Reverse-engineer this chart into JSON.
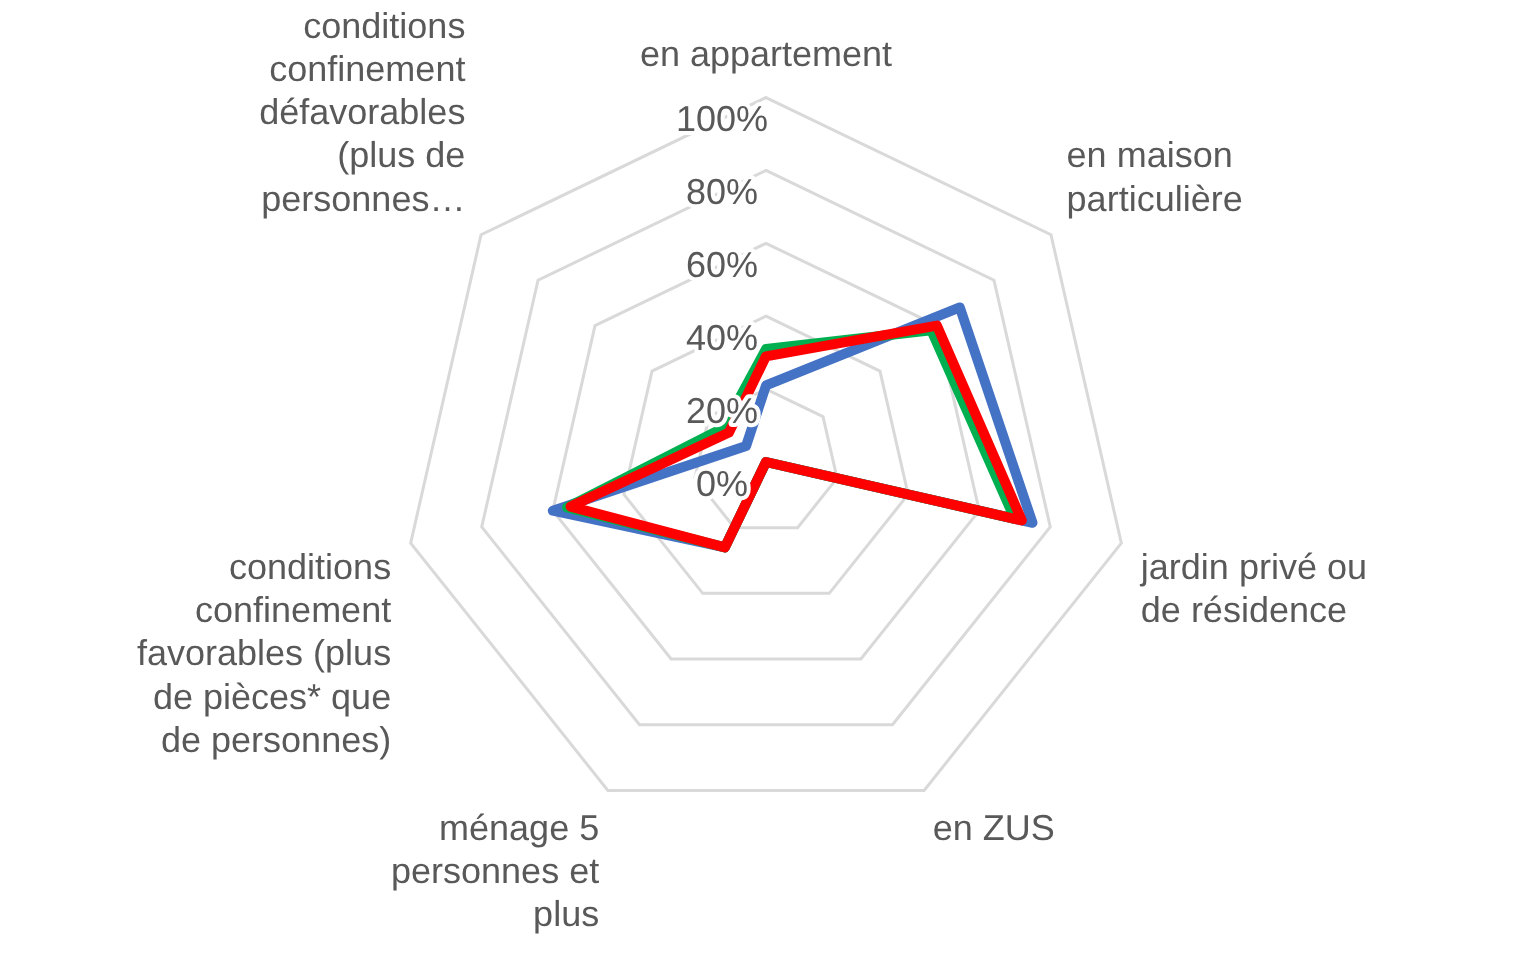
{
  "chart_data": {
    "type": "radar",
    "categories": [
      "en appartement",
      "en maison particulière",
      "jardin privé ou de résidence",
      "en ZUS",
      "ménage 5 personnes et plus",
      "conditions confinement favorables (plus de pièces* que de personnes)",
      "conditions confinement défavorables (plus de personnes…"
    ],
    "series": [
      {
        "color": "#4472c4",
        "values": [
          21,
          68,
          75,
          0,
          26,
          60,
          7
        ]
      },
      {
        "color": "#00b050",
        "values": [
          31,
          58,
          70,
          0,
          26,
          56,
          15
        ]
      },
      {
        "color": "#ff0000",
        "values": [
          29,
          60,
          72,
          0,
          26,
          55,
          13
        ]
      }
    ],
    "ylim": [
      0,
      100
    ],
    "yticks": [
      {
        "value": 0,
        "label": "0%"
      },
      {
        "value": 20,
        "label": "20%"
      },
      {
        "value": 40,
        "label": "40%"
      },
      {
        "value": 60,
        "label": "60%"
      },
      {
        "value": 80,
        "label": "80%"
      },
      {
        "value": 100,
        "label": "100%"
      }
    ],
    "grid": true,
    "legend": false,
    "marker": "none",
    "line_style": "solid"
  }
}
